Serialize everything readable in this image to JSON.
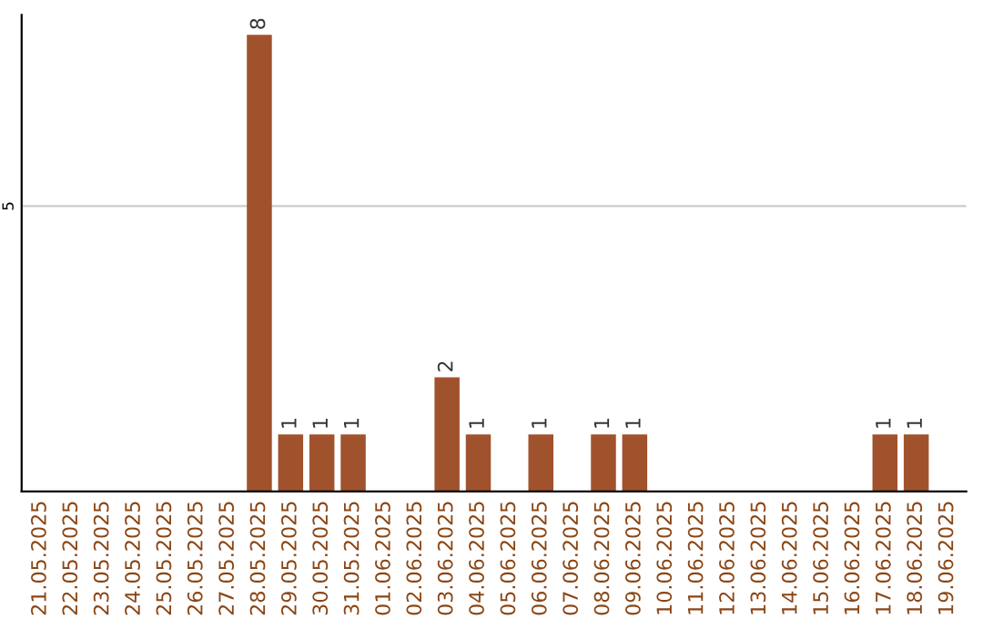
{
  "chart_data": {
    "type": "bar",
    "categories": [
      "21.05.2025",
      "22.05.2025",
      "23.05.2025",
      "24.05.2025",
      "25.05.2025",
      "26.05.2025",
      "27.05.2025",
      "28.05.2025",
      "29.05.2025",
      "30.05.2025",
      "31.05.2025",
      "01.06.2025",
      "02.06.2025",
      "03.06.2025",
      "04.06.2025",
      "05.06.2025",
      "06.06.2025",
      "07.06.2025",
      "08.06.2025",
      "09.06.2025",
      "10.06.2025",
      "11.06.2025",
      "12.06.2025",
      "13.06.2025",
      "14.06.2025",
      "15.06.2025",
      "16.06.2025",
      "17.06.2025",
      "18.06.2025",
      "19.06.2025"
    ],
    "values": [
      0,
      0,
      0,
      0,
      0,
      0,
      0,
      8,
      1,
      1,
      1,
      0,
      0,
      2,
      1,
      0,
      1,
      0,
      1,
      1,
      0,
      0,
      0,
      0,
      0,
      0,
      0,
      1,
      1,
      0
    ],
    "value_labels": [
      null,
      null,
      null,
      null,
      null,
      null,
      null,
      "8",
      "1",
      "1",
      "1",
      null,
      null,
      "2",
      "1",
      null,
      "1",
      null,
      "1",
      "1",
      null,
      null,
      null,
      null,
      null,
      null,
      null,
      "1",
      "1",
      null
    ],
    "color": "#a0522d",
    "ylim": [
      0,
      8.35
    ],
    "yticks": [
      5
    ],
    "grid": "y"
  }
}
